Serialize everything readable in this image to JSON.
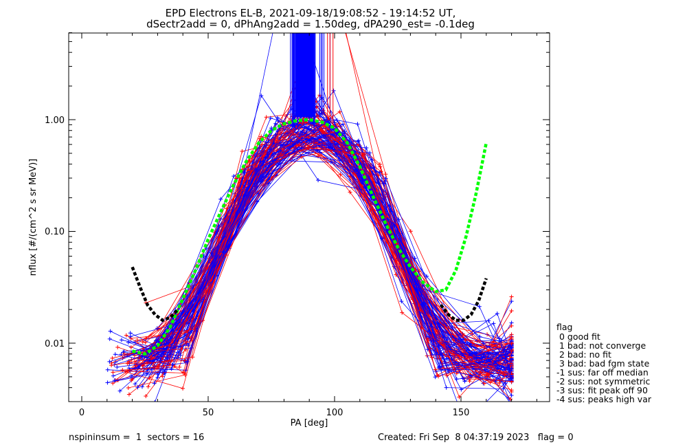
{
  "chart_data": {
    "type": "line",
    "title_line1": "EPD Electrons EL-B, 2021-09-18/19:08:52 - 19:14:52 UT,",
    "title_line2": "dSectr2add = 0, dPhAng2add = 1.50deg, dPA290_est=  -0.1deg",
    "xlabel": "PA [deg]",
    "ylabel": "nflux [#/(cm^2 s sr MeV)]",
    "xlim": [
      -5,
      185
    ],
    "ylim": [
      0.003,
      6
    ],
    "yscale": "log",
    "x_ticks": [
      "0",
      "50",
      "100",
      "150"
    ],
    "y_ticks": [
      "0.01",
      "0.10",
      "1.00"
    ],
    "series": [
      {
        "color": "#00ff00",
        "style": "dashed-thick",
        "x": [
          20,
          25,
          30,
          35,
          40,
          45,
          50,
          55,
          60,
          65,
          70,
          75,
          80,
          85,
          90,
          95,
          100,
          105,
          110,
          115,
          120,
          125,
          130,
          135,
          140,
          144,
          148,
          152,
          156,
          160
        ],
        "y": [
          0.0085,
          0.008,
          0.0095,
          0.014,
          0.025,
          0.045,
          0.085,
          0.15,
          0.26,
          0.42,
          0.62,
          0.8,
          0.92,
          0.98,
          1.0,
          0.95,
          0.84,
          0.62,
          0.38,
          0.21,
          0.12,
          0.072,
          0.048,
          0.035,
          0.029,
          0.03,
          0.045,
          0.09,
          0.22,
          0.62
        ]
      },
      {
        "color": "#000000",
        "style": "dashed-thick",
        "x": [
          20,
          23,
          26,
          29,
          32,
          35,
          38,
          142,
          145,
          148,
          151,
          154,
          157,
          160
        ],
        "y": [
          0.048,
          0.032,
          0.022,
          0.018,
          0.016,
          0.017,
          0.02,
          0.022,
          0.018,
          0.016,
          0.016,
          0.018,
          0.024,
          0.038
        ]
      },
      {
        "name": "blue PA distributions",
        "color": "#0000ff",
        "style": "thin-plus",
        "note": "hundreds of overlapping traces sampled near the envelope below",
        "x": [
          10,
          22,
          33,
          45,
          55,
          67,
          78,
          89,
          100,
          111,
          122,
          133,
          145,
          156,
          168
        ],
        "y": [
          0.006,
          0.01,
          0.018,
          0.06,
          0.18,
          0.45,
          0.8,
          0.95,
          0.88,
          0.45,
          0.16,
          0.06,
          0.018,
          0.01,
          0.006
        ]
      },
      {
        "name": "red PA distributions",
        "color": "#ff0000",
        "style": "thin-plus",
        "x": [
          12,
          24,
          35,
          46,
          57,
          68,
          79,
          90,
          101,
          112,
          123,
          134,
          146,
          157,
          169
        ],
        "y": [
          0.005,
          0.008,
          0.015,
          0.05,
          0.15,
          0.4,
          0.85,
          1.0,
          0.9,
          0.4,
          0.12,
          0.05,
          0.016,
          0.009,
          0.005
        ]
      }
    ],
    "flag_legend": {
      "header": "flag",
      "entries": [
        " 0 good fit",
        " 1 bad: not converge",
        " 2 bad: no fit",
        " 3 bad: bad fgm state",
        "-1 sus: far off median",
        "-2 sus: not symmetric",
        "-3 sus: fit peak off 90",
        "-4 sus: peaks high var"
      ]
    }
  },
  "footer": {
    "left": "nspininsum =  1  sectors = 16",
    "right": "Created: Fri Sep  8 04:37:19 2023   flag = 0"
  }
}
